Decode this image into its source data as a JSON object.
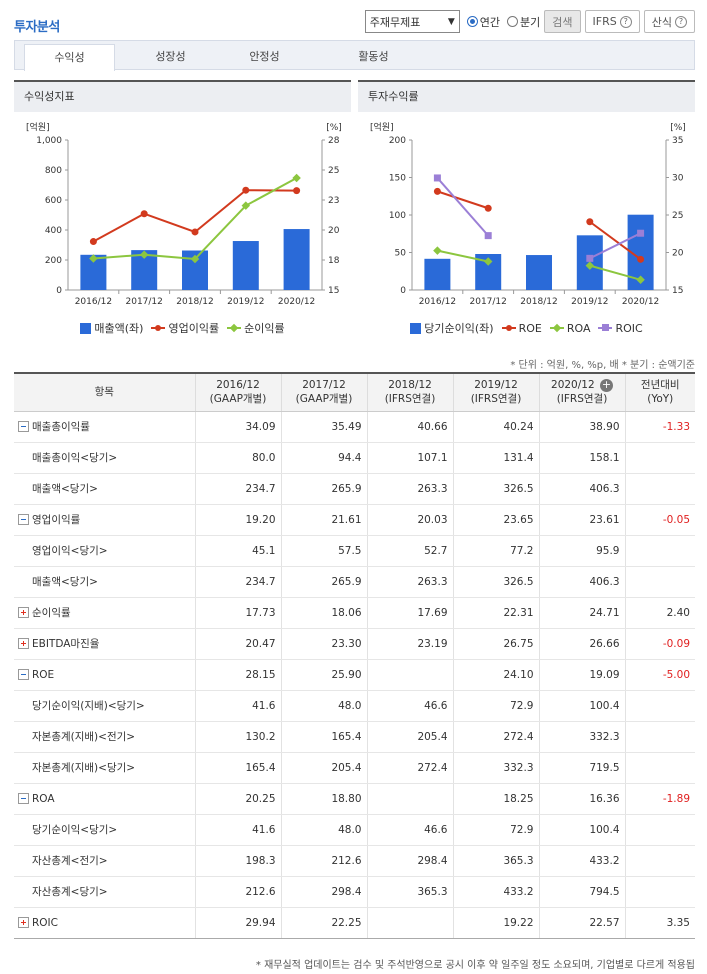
{
  "header": {
    "title": "투자분석",
    "select_value": "주재무제표",
    "radio_annual": "연간",
    "radio_quarter": "분기",
    "search_label": "검색",
    "ifrs_label": "IFRS",
    "formula_label": "산식",
    "qmark": "?"
  },
  "tabs": [
    {
      "label": "수익성"
    },
    {
      "label": "성장성"
    },
    {
      "label": "안정성"
    },
    {
      "label": "활동성"
    }
  ],
  "chart_left": {
    "title": "수익성지표",
    "left_unit": "[억원]",
    "right_unit": "[%]",
    "legend": [
      "매출액(좌)",
      "영업이익률",
      "순이익률"
    ]
  },
  "chart_right": {
    "title": "투자수익률",
    "left_unit": "[억원]",
    "right_unit": "[%]",
    "legend": [
      "당기순이익(좌)",
      "ROE",
      "ROA",
      "ROIC"
    ]
  },
  "chart_data": [
    {
      "type": "bar",
      "title": "수익성지표",
      "categories": [
        "2016/12",
        "2017/12",
        "2018/12",
        "2019/12",
        "2020/12"
      ],
      "y_left_ticks": [
        "0",
        "200",
        "400",
        "600",
        "800",
        "1,000"
      ],
      "ylim_left": [
        0,
        1000
      ],
      "y_right_ticks": [
        "15",
        "18",
        "20",
        "23",
        "25",
        "28"
      ],
      "ylim_right": [
        15,
        28
      ],
      "series": [
        {
          "name": "매출액(좌)",
          "type": "bar",
          "axis": "left",
          "color": "#2a6ad8",
          "values": [
            234.7,
            265.9,
            263.3,
            326.5,
            406.3
          ]
        },
        {
          "name": "영업이익률",
          "type": "line",
          "axis": "right",
          "color": "#d23a1e",
          "marker": "circle",
          "values": [
            19.2,
            21.61,
            20.03,
            23.65,
            23.61
          ]
        },
        {
          "name": "순이익률",
          "type": "line",
          "axis": "right",
          "color": "#8cc63f",
          "marker": "diamond",
          "values": [
            17.73,
            18.06,
            17.69,
            22.31,
            24.71
          ]
        }
      ],
      "legend_position": "bottom",
      "grid": false
    },
    {
      "type": "bar",
      "title": "투자수익률",
      "categories": [
        "2016/12",
        "2017/12",
        "2018/12",
        "2019/12",
        "2020/12"
      ],
      "y_left_ticks": [
        "0",
        "50",
        "100",
        "150",
        "200"
      ],
      "ylim_left": [
        0,
        200
      ],
      "y_right_ticks": [
        "15",
        "20",
        "25",
        "30",
        "35"
      ],
      "ylim_right": [
        15,
        35
      ],
      "series": [
        {
          "name": "당기순이익(좌)",
          "type": "bar",
          "axis": "left",
          "color": "#2a6ad8",
          "values": [
            41.6,
            48.0,
            46.6,
            72.9,
            100.4
          ]
        },
        {
          "name": "ROE",
          "type": "line",
          "axis": "right",
          "color": "#d23a1e",
          "marker": "circle",
          "values": [
            28.15,
            25.9,
            null,
            24.1,
            19.09
          ]
        },
        {
          "name": "ROA",
          "type": "line",
          "axis": "right",
          "color": "#8cc63f",
          "marker": "diamond",
          "values": [
            20.25,
            18.8,
            null,
            18.25,
            16.36
          ]
        },
        {
          "name": "ROIC",
          "type": "line",
          "axis": "right",
          "color": "#9b7fd6",
          "marker": "square",
          "values": [
            29.94,
            22.25,
            null,
            19.22,
            22.57
          ]
        }
      ],
      "legend_position": "bottom",
      "grid": false
    }
  ],
  "unit_note": "* 단위 : 억원, %, %p, 배    * 분기 : 순액기준",
  "table": {
    "header_item": "항목",
    "columns": [
      {
        "year": "2016/12",
        "basis": "(GAAP개별)"
      },
      {
        "year": "2017/12",
        "basis": "(GAAP개별)"
      },
      {
        "year": "2018/12",
        "basis": "(IFRS연결)"
      },
      {
        "year": "2019/12",
        "basis": "(IFRS연결)"
      },
      {
        "year": "2020/12",
        "basis": "(IFRS연결)"
      }
    ],
    "yoy_label": "전년대비",
    "yoy_sub": "(YoY)",
    "rows": [
      {
        "label": "매출총이익률",
        "toggle": "minus",
        "values": [
          "34.09",
          "35.49",
          "40.66",
          "40.24",
          "38.90"
        ],
        "yoy": "-1.33",
        "neg": true
      },
      {
        "label": "매출총이익<당기>",
        "sub": true,
        "values": [
          "80.0",
          "94.4",
          "107.1",
          "131.4",
          "158.1"
        ],
        "yoy": ""
      },
      {
        "label": "매출액<당기>",
        "sub": true,
        "values": [
          "234.7",
          "265.9",
          "263.3",
          "326.5",
          "406.3"
        ],
        "yoy": ""
      },
      {
        "label": "영업이익률",
        "toggle": "minus",
        "values": [
          "19.20",
          "21.61",
          "20.03",
          "23.65",
          "23.61"
        ],
        "yoy": "-0.05",
        "neg": true
      },
      {
        "label": "영업이익<당기>",
        "sub": true,
        "values": [
          "45.1",
          "57.5",
          "52.7",
          "77.2",
          "95.9"
        ],
        "yoy": ""
      },
      {
        "label": "매출액<당기>",
        "sub": true,
        "values": [
          "234.7",
          "265.9",
          "263.3",
          "326.5",
          "406.3"
        ],
        "yoy": ""
      },
      {
        "label": "순이익률",
        "toggle": "plus",
        "values": [
          "17.73",
          "18.06",
          "17.69",
          "22.31",
          "24.71"
        ],
        "yoy": "2.40"
      },
      {
        "label": "EBITDA마진율",
        "toggle": "plus",
        "values": [
          "20.47",
          "23.30",
          "23.19",
          "26.75",
          "26.66"
        ],
        "yoy": "-0.09",
        "neg": true
      },
      {
        "label": "ROE",
        "toggle": "minus",
        "values": [
          "28.15",
          "25.90",
          "",
          "24.10",
          "19.09"
        ],
        "yoy": "-5.00",
        "neg": true
      },
      {
        "label": "당기순이익(지배)<당기>",
        "sub": true,
        "values": [
          "41.6",
          "48.0",
          "46.6",
          "72.9",
          "100.4"
        ],
        "yoy": ""
      },
      {
        "label": "자본총계(지배)<전기>",
        "sub": true,
        "values": [
          "130.2",
          "165.4",
          "205.4",
          "272.4",
          "332.3"
        ],
        "yoy": ""
      },
      {
        "label": "자본총계(지배)<당기>",
        "sub": true,
        "values": [
          "165.4",
          "205.4",
          "272.4",
          "332.3",
          "719.5"
        ],
        "yoy": ""
      },
      {
        "label": "ROA",
        "toggle": "minus",
        "values": [
          "20.25",
          "18.80",
          "",
          "18.25",
          "16.36"
        ],
        "yoy": "-1.89",
        "neg": true
      },
      {
        "label": "당기순이익<당기>",
        "sub": true,
        "values": [
          "41.6",
          "48.0",
          "46.6",
          "72.9",
          "100.4"
        ],
        "yoy": ""
      },
      {
        "label": "자산총계<전기>",
        "sub": true,
        "values": [
          "198.3",
          "212.6",
          "298.4",
          "365.3",
          "433.2"
        ],
        "yoy": ""
      },
      {
        "label": "자산총계<당기>",
        "sub": true,
        "values": [
          "212.6",
          "298.4",
          "365.3",
          "433.2",
          "794.5"
        ],
        "yoy": ""
      },
      {
        "label": "ROIC",
        "toggle": "plus",
        "values": [
          "29.94",
          "22.25",
          "",
          "19.22",
          "22.57"
        ],
        "yoy": "3.35"
      }
    ]
  },
  "footnote": "* 재무실적 업데이트는 검수 및 주석반영으로 공시 이후 약 일주일 정도 소요되며, 기업별로 다르게 적용됩"
}
